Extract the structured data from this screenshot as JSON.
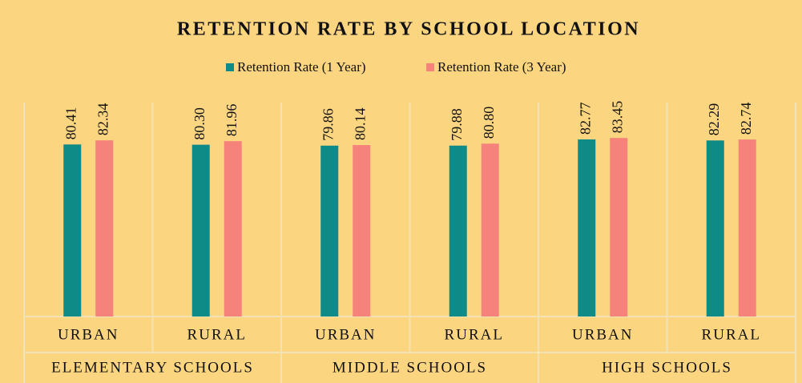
{
  "chart_data": {
    "type": "bar",
    "title": "RETENTION RATE BY SCHOOL LOCATION",
    "categories": [
      "URBAN",
      "RURAL",
      "URBAN",
      "RURAL",
      "URBAN",
      "RURAL"
    ],
    "category_groups": [
      "ELEMENTARY SCHOOLS",
      "MIDDLE SCHOOLS",
      "HIGH SCHOOLS"
    ],
    "series": [
      {
        "name": "Retention Rate (1 Year)",
        "color": "#0e8a87",
        "values": [
          80.41,
          80.3,
          79.86,
          79.88,
          82.77,
          82.29
        ],
        "value_labels": [
          "80.41",
          "80.30",
          "79.86",
          "79.88",
          "82.77",
          "82.29"
        ]
      },
      {
        "name": "Retention Rate (3 Year)",
        "color": "#f5837c",
        "values": [
          82.34,
          81.96,
          80.14,
          80.8,
          83.45,
          82.74
        ],
        "value_labels": [
          "82.34",
          "81.96",
          "80.14",
          "80.80",
          "83.45",
          "82.74"
        ]
      }
    ],
    "ylim": [
      0,
      100
    ],
    "legend": "top"
  }
}
